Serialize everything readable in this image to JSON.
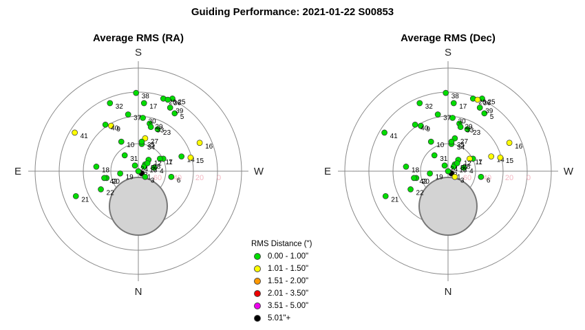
{
  "title": "Guiding Performance: 2021-01-22 S00853",
  "legend": {
    "title": "RMS Distance (\")",
    "items": [
      {
        "label": "0.00 - 1.00\"",
        "color": "#00dd00"
      },
      {
        "label": "1.01 - 1.50\"",
        "color": "#ffff00"
      },
      {
        "label": "1.51 - 2.00\"",
        "color": "#ff9900"
      },
      {
        "label": "2.01 - 3.50\"",
        "color": "#ee0000"
      },
      {
        "label": "3.51 - 5.00\"",
        "color": "#ee00ee"
      },
      {
        "label": "5.01\"+",
        "color": "#000000"
      }
    ]
  },
  "chart_data": [
    {
      "type": "scatter",
      "title": "Average RMS (RA)",
      "projection": "polar",
      "directions": {
        "top": "S",
        "bottom": "N",
        "left": "E",
        "right": "W"
      },
      "radial_ticks": [
        "60",
        "40",
        "20",
        "0"
      ],
      "points": [
        {
          "label": "1",
          "x": 0.3,
          "y": -0.2,
          "cls": 5
        },
        {
          "label": "2",
          "x": 0.0,
          "y": 0.0,
          "cls": 0
        },
        {
          "label": "3",
          "x": 0.6,
          "y": -0.5,
          "cls": 0
        },
        {
          "label": "4",
          "x": 1.4,
          "y": 0.3,
          "cls": 0
        },
        {
          "label": "5",
          "x": 3.2,
          "y": 5.1,
          "cls": 0
        },
        {
          "label": "6",
          "x": 2.9,
          "y": -0.5,
          "cls": 0
        },
        {
          "label": "7",
          "x": 2.2,
          "y": 1.1,
          "cls": 0
        },
        {
          "label": "8",
          "x": 0.6,
          "y": 0.6,
          "cls": 0
        },
        {
          "label": "9",
          "x": -2.4,
          "y": 4.0,
          "cls": 1
        },
        {
          "label": "10",
          "x": -1.5,
          "y": 2.6,
          "cls": 0
        },
        {
          "label": "11",
          "x": 1.9,
          "y": 1.1,
          "cls": 0
        },
        {
          "label": "12",
          "x": 0.9,
          "y": 1.0,
          "cls": 0
        },
        {
          "label": "13",
          "x": 0.5,
          "y": 0.4,
          "cls": 0
        },
        {
          "label": "14",
          "x": 3.8,
          "y": 1.3,
          "cls": 0
        },
        {
          "label": "15",
          "x": 4.6,
          "y": 1.2,
          "cls": 1
        },
        {
          "label": "16",
          "x": 5.4,
          "y": 2.5,
          "cls": 1
        },
        {
          "label": "17",
          "x": 0.5,
          "y": 6.0,
          "cls": 0
        },
        {
          "label": "18",
          "x": -3.7,
          "y": 0.4,
          "cls": 0
        },
        {
          "label": "19",
          "x": -1.6,
          "y": -0.2,
          "cls": 0
        },
        {
          "label": "20",
          "x": -2.8,
          "y": -0.6,
          "cls": 0
        },
        {
          "label": "21",
          "x": -5.5,
          "y": -2.2,
          "cls": 0
        },
        {
          "label": "22",
          "x": -3.3,
          "y": -1.6,
          "cls": 0
        },
        {
          "label": "23",
          "x": 1.7,
          "y": 3.7,
          "cls": 0
        },
        {
          "label": "24",
          "x": -0.3,
          "y": 0.5,
          "cls": 0
        },
        {
          "label": "25",
          "x": 3.0,
          "y": 6.4,
          "cls": 0
        },
        {
          "label": "26",
          "x": 2.2,
          "y": 6.4,
          "cls": 0
        },
        {
          "label": "27",
          "x": 0.6,
          "y": 2.9,
          "cls": 1
        },
        {
          "label": "28",
          "x": 0.8,
          "y": 0.7,
          "cls": 0
        },
        {
          "label": "29",
          "x": 1.0,
          "y": 4.2,
          "cls": 0
        },
        {
          "label": "30",
          "x": 0.4,
          "y": 4.7,
          "cls": 0
        },
        {
          "label": "31",
          "x": -1.2,
          "y": 1.4,
          "cls": 0
        },
        {
          "label": "32",
          "x": -2.5,
          "y": 6.0,
          "cls": 0
        },
        {
          "label": "33",
          "x": 1.1,
          "y": 3.9,
          "cls": 0
        },
        {
          "label": "34",
          "x": 0.3,
          "y": 2.4,
          "cls": 0
        },
        {
          "label": "35",
          "x": 0.3,
          "y": 2.6,
          "cls": 0
        },
        {
          "label": "36",
          "x": 2.6,
          "y": 6.3,
          "cls": 0
        },
        {
          "label": "37",
          "x": -0.9,
          "y": 5.0,
          "cls": 0
        },
        {
          "label": "38",
          "x": -0.2,
          "y": 6.9,
          "cls": 0
        },
        {
          "label": "39",
          "x": 2.8,
          "y": 5.6,
          "cls": 0
        },
        {
          "label": "40",
          "x": -2.9,
          "y": 4.1,
          "cls": 0
        },
        {
          "label": "41",
          "x": -5.6,
          "y": 3.4,
          "cls": 1
        },
        {
          "label": "42",
          "x": -3.0,
          "y": -0.6,
          "cls": 0
        }
      ]
    },
    {
      "type": "scatter",
      "title": "Average RMS (Dec)",
      "projection": "polar",
      "directions": {
        "top": "S",
        "bottom": "N",
        "left": "E",
        "right": "W"
      },
      "radial_ticks": [
        "60",
        "40",
        "20",
        "0"
      ],
      "points": [
        {
          "label": "1",
          "x": 0.3,
          "y": -0.2,
          "cls": 5
        },
        {
          "label": "2",
          "x": 0.0,
          "y": 0.0,
          "cls": 0
        },
        {
          "label": "3",
          "x": 0.6,
          "y": -0.5,
          "cls": 1
        },
        {
          "label": "4",
          "x": 1.4,
          "y": 0.3,
          "cls": 0
        },
        {
          "label": "5",
          "x": 3.2,
          "y": 5.1,
          "cls": 0
        },
        {
          "label": "6",
          "x": 2.9,
          "y": -0.5,
          "cls": 0
        },
        {
          "label": "7",
          "x": 2.2,
          "y": 1.1,
          "cls": 0
        },
        {
          "label": "8",
          "x": 0.6,
          "y": 0.6,
          "cls": 0
        },
        {
          "label": "9",
          "x": -2.4,
          "y": 4.0,
          "cls": 0
        },
        {
          "label": "10",
          "x": -1.5,
          "y": 2.6,
          "cls": 0
        },
        {
          "label": "11",
          "x": 1.9,
          "y": 1.1,
          "cls": 1
        },
        {
          "label": "12",
          "x": 0.9,
          "y": 1.0,
          "cls": 0
        },
        {
          "label": "13",
          "x": 0.5,
          "y": 0.4,
          "cls": 0
        },
        {
          "label": "14",
          "x": 3.8,
          "y": 1.3,
          "cls": 1
        },
        {
          "label": "15",
          "x": 4.6,
          "y": 1.2,
          "cls": 1
        },
        {
          "label": "16",
          "x": 5.4,
          "y": 2.5,
          "cls": 1
        },
        {
          "label": "17",
          "x": 0.5,
          "y": 6.0,
          "cls": 0
        },
        {
          "label": "18",
          "x": -3.7,
          "y": 0.4,
          "cls": 0
        },
        {
          "label": "19",
          "x": -1.6,
          "y": -0.2,
          "cls": 0
        },
        {
          "label": "20",
          "x": -2.8,
          "y": -0.6,
          "cls": 0
        },
        {
          "label": "21",
          "x": -5.5,
          "y": -2.2,
          "cls": 0
        },
        {
          "label": "22",
          "x": -3.3,
          "y": -1.6,
          "cls": 0
        },
        {
          "label": "23",
          "x": 1.7,
          "y": 3.7,
          "cls": 0
        },
        {
          "label": "24",
          "x": -0.3,
          "y": 0.5,
          "cls": 0
        },
        {
          "label": "25",
          "x": 3.0,
          "y": 6.4,
          "cls": 0
        },
        {
          "label": "26",
          "x": 2.2,
          "y": 6.4,
          "cls": 0
        },
        {
          "label": "27",
          "x": 0.6,
          "y": 2.9,
          "cls": 0
        },
        {
          "label": "28",
          "x": 0.8,
          "y": 0.7,
          "cls": 0
        },
        {
          "label": "29",
          "x": 1.0,
          "y": 4.2,
          "cls": 0
        },
        {
          "label": "30",
          "x": 0.4,
          "y": 4.7,
          "cls": 0
        },
        {
          "label": "31",
          "x": -1.2,
          "y": 1.4,
          "cls": 0
        },
        {
          "label": "32",
          "x": -2.5,
          "y": 6.0,
          "cls": 0
        },
        {
          "label": "33",
          "x": 1.1,
          "y": 3.9,
          "cls": 0
        },
        {
          "label": "34",
          "x": 0.3,
          "y": 2.4,
          "cls": 0
        },
        {
          "label": "35",
          "x": 0.3,
          "y": 2.6,
          "cls": 0
        },
        {
          "label": "36",
          "x": 2.6,
          "y": 6.3,
          "cls": 1
        },
        {
          "label": "37",
          "x": -0.9,
          "y": 5.0,
          "cls": 0
        },
        {
          "label": "38",
          "x": -0.2,
          "y": 6.9,
          "cls": 0
        },
        {
          "label": "39",
          "x": 2.8,
          "y": 5.6,
          "cls": 0
        },
        {
          "label": "40",
          "x": -2.9,
          "y": 4.1,
          "cls": 0
        },
        {
          "label": "41",
          "x": -5.6,
          "y": 3.4,
          "cls": 0
        },
        {
          "label": "42",
          "x": -3.0,
          "y": -0.6,
          "cls": 0
        }
      ]
    }
  ]
}
